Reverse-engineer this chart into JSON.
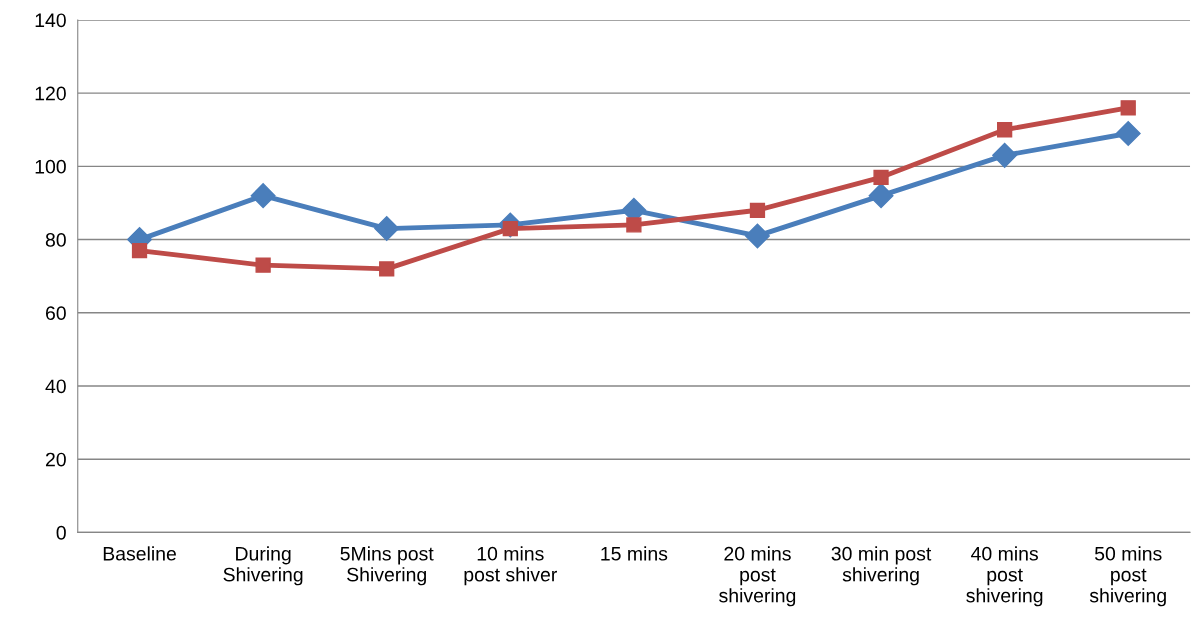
{
  "chart_data": {
    "type": "line",
    "categories": [
      "Baseline",
      "During\nShivering",
      "5Mins post\nShivering",
      "10 mins\npost shiver",
      "15 mins",
      "20 mins\npost\nshivering",
      "30 min post\nshivering",
      "40 mins\npost\nshivering",
      "50 mins\npost\nshivering"
    ],
    "series": [
      {
        "color": "#4a7ebb",
        "marker": "diamond",
        "values": [
          80,
          92,
          83,
          84,
          88,
          81,
          92,
          103,
          109
        ]
      },
      {
        "color": "#be4b48",
        "marker": "square",
        "values": [
          77,
          73,
          72,
          83,
          84,
          88,
          97,
          110,
          116
        ]
      }
    ],
    "ylim": [
      0,
      140
    ],
    "yticks": [
      0,
      20,
      40,
      60,
      80,
      100,
      120,
      140
    ],
    "grid": "y",
    "line_style": "solid"
  }
}
